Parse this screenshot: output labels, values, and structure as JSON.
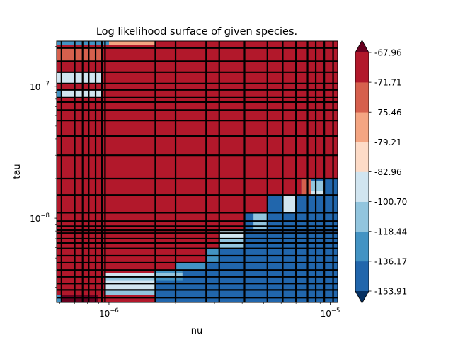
{
  "chart_data": {
    "type": "heatmap",
    "title": "Log likelihood surface of given species.",
    "xlabel": "nu",
    "ylabel": "tau",
    "xscale": "log",
    "yscale": "log",
    "xlim": [
      5.8e-07,
      1.08e-05
    ],
    "ylim": [
      2.3e-09,
      2.2e-07
    ],
    "x_tick_labels": [
      {
        "value": 1e-06,
        "label": "10",
        "exp": "−6"
      },
      {
        "value": 1e-05,
        "label": "10",
        "exp": "−5"
      }
    ],
    "y_tick_labels": [
      {
        "value": 1e-08,
        "label": "10",
        "exp": "−8"
      },
      {
        "value": 1e-07,
        "label": "10",
        "exp": "−7"
      }
    ],
    "colorbar": {
      "levels": [
        -153.91,
        -136.17,
        -118.44,
        -100.7,
        -82.96,
        -79.21,
        -75.46,
        -71.71,
        -67.96
      ],
      "tick_labels": [
        "-153.91",
        "-136.17",
        "-118.44",
        "-100.70",
        "-82.96",
        "-79.21",
        "-75.46",
        "-71.71",
        "-67.96"
      ],
      "colors": [
        "#2166ac",
        "#4393c3",
        "#92c5de",
        "#d1e5f0",
        "#fddbc7",
        "#f4a582",
        "#d6604d",
        "#b2182b"
      ],
      "under_color": "#053061",
      "over_color": "#67001f",
      "extend": "both"
    },
    "background_color": "#b2182b",
    "regions": [
      {
        "nu": [
          5.8e-07,
          1.62e-06
        ],
        "tau": [
          2.05e-07,
          2.2e-07
        ],
        "value": -79.0
      },
      {
        "nu": [
          5.8e-07,
          1e-06
        ],
        "tau": [
          2.05e-07,
          2.2e-07
        ],
        "value": -136.0
      },
      {
        "nu": [
          5.8e-07,
          9.4e-07
        ],
        "tau": [
          1.55e-07,
          1.95e-07
        ],
        "value": -72.5
      },
      {
        "nu": [
          5.8e-07,
          9.4e-07
        ],
        "tau": [
          1.05e-07,
          1.28e-07
        ],
        "value": -90.0
      },
      {
        "nu": [
          5.8e-07,
          9.4e-07
        ],
        "tau": [
          8.2e-08,
          9.4e-08
        ],
        "value": -88.0
      },
      {
        "nu": [
          5.8e-07,
          6.1e-07
        ],
        "tau": [
          8.2e-08,
          9.4e-08
        ],
        "value": -125.0
      },
      {
        "nu": [
          5.8e-07,
          8.9e-07
        ],
        "tau": [
          2.3e-09,
          2.63e-09
        ],
        "value": -66.0
      },
      {
        "nu": [
          5.8e-07,
          6.1e-07
        ],
        "tau": [
          2.3e-09,
          2.63e-09
        ],
        "value": -125.0
      },
      {
        "nu": [
          9.6e-07,
          1.62e-06
        ],
        "tau": [
          3.6e-09,
          3.82e-09
        ],
        "value": -90.0
      },
      {
        "nu": [
          9.6e-07,
          1.62e-06
        ],
        "tau": [
          2.63e-09,
          3.6e-09
        ],
        "value": -110.0
      },
      {
        "nu": [
          9.6e-07,
          1.62e-06
        ],
        "tau": [
          2.86e-09,
          3.35e-09
        ],
        "value": -90.0
      },
      {
        "nu": [
          1.62e-06,
          1.08e-05
        ],
        "tau": [
          2.3e-09,
          3.6e-09
        ],
        "value": -140.0
      },
      {
        "nu": [
          1.6e-06,
          2.15e-06
        ],
        "tau": [
          3.35e-09,
          4.05e-09
        ],
        "value": -136.0
      },
      {
        "nu": [
          1.6e-06,
          2.15e-06
        ],
        "tau": [
          3.6e-09,
          3.82e-09
        ],
        "value": -110.0
      },
      {
        "nu": [
          2.15e-06,
          1.08e-05
        ],
        "tau": [
          3.6e-09,
          4.6e-09
        ],
        "value": -140.0
      },
      {
        "nu": [
          2e-06,
          2.75e-06
        ],
        "tau": [
          4.05e-09,
          4.6e-09
        ],
        "value": -136.0
      },
      {
        "nu": [
          2.75e-06,
          1.08e-05
        ],
        "tau": [
          4.6e-09,
          5.9e-09
        ],
        "value": -140.0
      },
      {
        "nu": [
          2.75e-06,
          3.15e-06
        ],
        "tau": [
          4.6e-09,
          5.9e-09
        ],
        "value": -125.0
      },
      {
        "nu": [
          3.15e-06,
          1.08e-05
        ],
        "tau": [
          5.9e-09,
          8e-09
        ],
        "value": -140.0
      },
      {
        "nu": [
          3.15e-06,
          4.1e-06
        ],
        "tau": [
          5.9e-09,
          8e-09
        ],
        "value": -118.0
      },
      {
        "nu": [
          3.15e-06,
          4.1e-06
        ],
        "tau": [
          7e-09,
          8e-09
        ],
        "value": -95.0
      },
      {
        "nu": [
          4.1e-06,
          1.08e-05
        ],
        "tau": [
          8e-09,
          1.1e-08
        ],
        "value": -140.0
      },
      {
        "nu": [
          4.5e-06,
          5.2e-06
        ],
        "tau": [
          8e-09,
          1.1e-08
        ],
        "value": -118.0
      },
      {
        "nu": [
          5.2e-06,
          1.08e-05
        ],
        "tau": [
          1.1e-08,
          1.5e-08
        ],
        "value": -140.0
      },
      {
        "nu": [
          6.1e-06,
          7e-06
        ],
        "tau": [
          1.1e-08,
          1.5e-08
        ],
        "value": -90.0
      },
      {
        "nu": [
          7.4e-06,
          1.08e-05
        ],
        "tau": [
          1.5e-08,
          2e-08
        ],
        "value": -140.0
      },
      {
        "nu": [
          7.4e-06,
          8.2e-06
        ],
        "tau": [
          1.5e-08,
          2e-08
        ],
        "value": -72.5
      },
      {
        "nu": [
          8.2e-06,
          9.4e-06
        ],
        "tau": [
          1.5e-08,
          1.92e-08
        ],
        "value": -110.0
      },
      {
        "nu": [
          8.2e-06,
          9.4e-06
        ],
        "tau": [
          1.5e-08,
          1.62e-08
        ],
        "value": -90.0
      }
    ],
    "grid_lines_x": [
      6.1e-07,
      7e-07,
      7.6e-07,
      8.1e-07,
      8.7e-07,
      9.3e-07,
      9.6e-07,
      1.62e-06,
      2e-06,
      2.75e-06,
      3.15e-06,
      4.1e-06,
      5.2e-06,
      6.1e-06,
      7e-06,
      7.9e-06,
      8.6e-06,
      9.4e-06,
      1.03e-05
    ],
    "grid_lines_y": [
      2.5e-09,
      2.86e-09,
      3.2e-09,
      3.6e-09,
      4.05e-09,
      4.6e-09,
      5.2e-09,
      5.9e-09,
      6.5e-09,
      7e-09,
      7.7e-09,
      8.1e-09,
      8.7e-09,
      9.5e-09,
      1.1e-08,
      1.5e-08,
      2e-08,
      3e-08,
      4.2e-08,
      5.5e-08,
      6.6e-08,
      7.6e-08,
      8.2e-08,
      9.4e-08,
      1.05e-07,
      1.28e-07,
      1.55e-07,
      1.95e-07
    ]
  }
}
